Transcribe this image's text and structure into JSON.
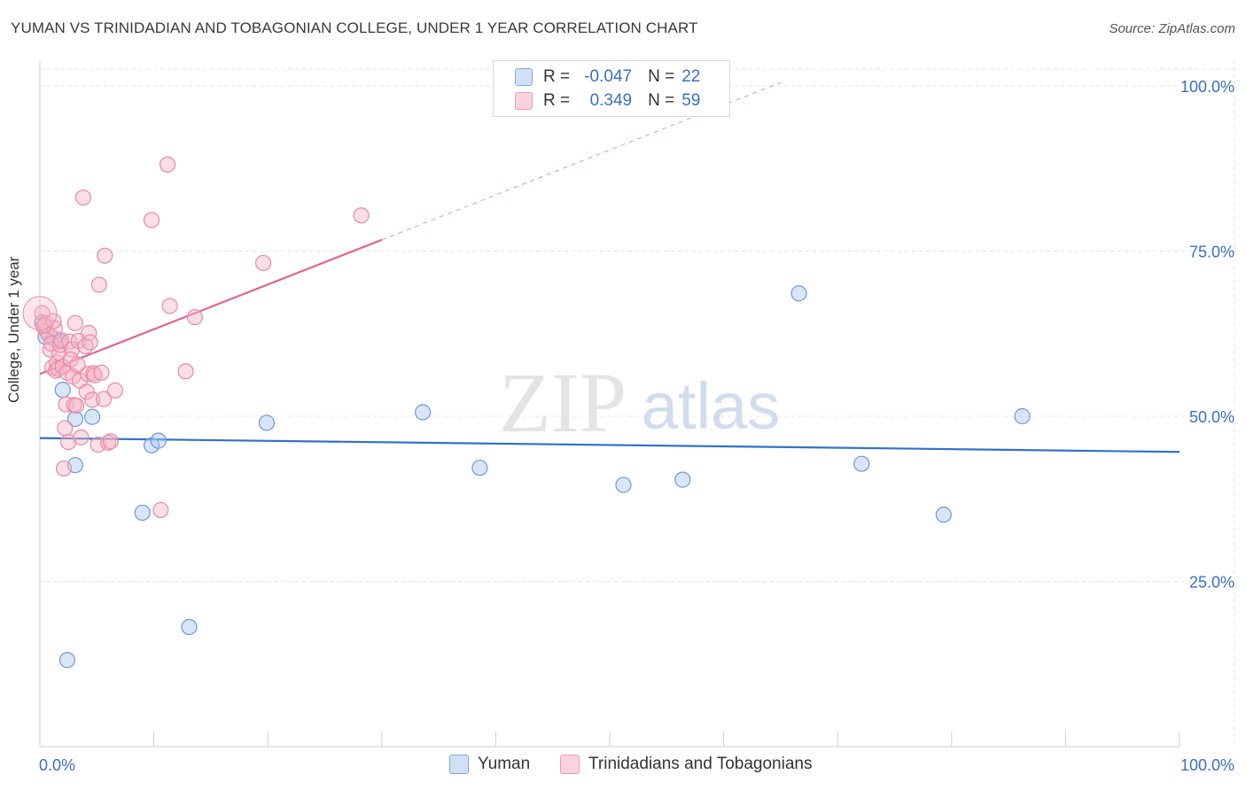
{
  "title": "YUMAN VS TRINIDADIAN AND TOBAGONIAN COLLEGE, UNDER 1 YEAR CORRELATION CHART",
  "source": "Source: ZipAtlas.com",
  "watermark": {
    "zip": "ZIP",
    "atlas": "atlas"
  },
  "legend_top": {
    "rows": [
      {
        "r_label": "R =",
        "r_value": "-0.047",
        "n_label": "N =",
        "n_value": "22",
        "color": "#a9c7f0"
      },
      {
        "r_label": "R =",
        "r_value": "0.349",
        "n_label": "N =",
        "n_value": "59",
        "color": "#f6b5c8"
      }
    ]
  },
  "legend_bottom": {
    "items": [
      {
        "label": "Yuman",
        "color": "#a9c7f0"
      },
      {
        "label": "Trinidadians and Tobagonians",
        "color": "#f6b5c8"
      }
    ]
  },
  "chart_data": {
    "type": "scatter",
    "title": "YUMAN VS TRINIDADIAN AND TOBAGONIAN COLLEGE, UNDER 1 YEAR CORRELATION CHART",
    "xlabel": "",
    "ylabel": "College, Under 1 year",
    "xlim": [
      0,
      100
    ],
    "ylim": [
      0,
      105
    ],
    "x_tick_labels": [
      {
        "value": 0,
        "label": "0.0%"
      },
      {
        "value": 100,
        "label": "100.0%"
      }
    ],
    "y_tick_labels": [
      {
        "value": 25,
        "label": "25.0%"
      },
      {
        "value": 50,
        "label": "50.0%"
      },
      {
        "value": 75,
        "label": "75.0%"
      },
      {
        "value": 100,
        "label": "100.0%"
      }
    ],
    "grid": true,
    "series": [
      {
        "name": "Yuman",
        "color": "#a9c7f0",
        "stroke": "#6b9bd8",
        "trend_color": "#2f72c9",
        "trend": {
          "x0": 0,
          "y0": 46.7,
          "x1": 100,
          "y1": 44.6
        },
        "points": [
          [
            0.5,
            62.0
          ],
          [
            1.8,
            61.3
          ],
          [
            2.0,
            54.0
          ],
          [
            3.1,
            49.6
          ],
          [
            4.6,
            49.9
          ],
          [
            2.4,
            13.1
          ],
          [
            3.1,
            42.6
          ],
          [
            9.0,
            35.4
          ],
          [
            9.8,
            45.6
          ],
          [
            10.4,
            46.3
          ],
          [
            13.1,
            18.1
          ],
          [
            19.9,
            49.0
          ],
          [
            33.6,
            50.6
          ],
          [
            38.6,
            42.2
          ],
          [
            51.2,
            39.6
          ],
          [
            56.4,
            40.4
          ],
          [
            66.6,
            68.6
          ],
          [
            72.1,
            42.8
          ],
          [
            79.3,
            35.1
          ],
          [
            86.2,
            50.0
          ],
          [
            0.2,
            64.2
          ],
          [
            1.2,
            61.8
          ]
        ]
      },
      {
        "name": "Trinidadians and Tobagonians",
        "color": "#f6b5c8",
        "stroke": "#e88aa7",
        "trend_color": "#e0668f",
        "trend": {
          "x0": 0,
          "y0": 56.4,
          "x1": 30,
          "y1": 76.7
        },
        "trend_ext": {
          "x0": 30,
          "y0": 76.7,
          "x1": 65,
          "y1": 100.5
        },
        "points": [
          [
            0.2,
            65.6
          ],
          [
            0.3,
            63.6
          ],
          [
            0.5,
            64.1
          ],
          [
            0.6,
            62.9
          ],
          [
            0.8,
            62.3
          ],
          [
            0.9,
            60.1
          ],
          [
            1.0,
            61.0
          ],
          [
            1.1,
            57.4
          ],
          [
            1.3,
            63.3
          ],
          [
            1.4,
            56.9
          ],
          [
            1.5,
            58.1
          ],
          [
            1.6,
            57.2
          ],
          [
            1.7,
            59.6
          ],
          [
            1.8,
            60.8
          ],
          [
            1.9,
            61.5
          ],
          [
            2.0,
            57.5
          ],
          [
            2.1,
            42.1
          ],
          [
            2.2,
            48.2
          ],
          [
            2.3,
            51.8
          ],
          [
            2.4,
            56.6
          ],
          [
            2.5,
            46.1
          ],
          [
            2.6,
            61.3
          ],
          [
            2.8,
            60.1
          ],
          [
            2.9,
            56.0
          ],
          [
            3.0,
            51.7
          ],
          [
            3.1,
            64.1
          ],
          [
            3.2,
            51.6
          ],
          [
            3.4,
            61.4
          ],
          [
            3.5,
            55.4
          ],
          [
            3.6,
            46.8
          ],
          [
            3.8,
            83.1
          ],
          [
            4.0,
            60.6
          ],
          [
            4.1,
            53.7
          ],
          [
            4.2,
            56.4
          ],
          [
            4.3,
            62.6
          ],
          [
            4.4,
            61.2
          ],
          [
            4.6,
            52.5
          ],
          [
            4.7,
            56.5
          ],
          [
            4.8,
            56.2
          ],
          [
            5.1,
            45.7
          ],
          [
            5.2,
            69.9
          ],
          [
            5.4,
            56.6
          ],
          [
            5.6,
            52.6
          ],
          [
            5.7,
            74.3
          ],
          [
            6.0,
            46.0
          ],
          [
            6.2,
            46.2
          ],
          [
            6.6,
            53.9
          ],
          [
            9.8,
            79.7
          ],
          [
            10.6,
            35.8
          ],
          [
            11.2,
            88.1
          ],
          [
            11.4,
            66.7
          ],
          [
            12.8,
            56.8
          ],
          [
            13.6,
            65.0
          ],
          [
            19.6,
            73.2
          ],
          [
            28.2,
            80.4
          ],
          [
            0.4,
            63.8
          ],
          [
            1.2,
            64.4
          ],
          [
            2.7,
            58.6
          ],
          [
            3.3,
            57.8
          ]
        ],
        "large_point": [
          0.0,
          65.6
        ]
      }
    ]
  }
}
